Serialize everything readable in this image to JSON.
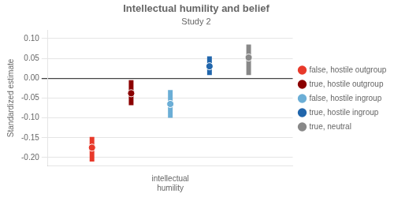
{
  "chart_data": {
    "type": "scatter",
    "title": "Intellectual humility and belief",
    "subtitle": "Study 2",
    "ylabel": "Standardized estimate",
    "categories": [
      "intellectual\nhumility"
    ],
    "series": [
      {
        "name": "false, hostile outgroup",
        "color": "#e8392a",
        "values": [
          -0.175
        ],
        "ylo": [
          -0.21
        ],
        "yhi": [
          -0.148
        ]
      },
      {
        "name": "true, hostile outgroup",
        "color": "#8b0000",
        "values": [
          -0.038
        ],
        "ylo": [
          -0.068
        ],
        "yhi": [
          -0.005
        ]
      },
      {
        "name": "false, hostile ingroup",
        "color": "#6baed6",
        "values": [
          -0.065
        ],
        "ylo": [
          -0.1
        ],
        "yhi": [
          -0.03
        ]
      },
      {
        "name": "true, hostile ingroup",
        "color": "#2166ac",
        "values": [
          0.03
        ],
        "ylo": [
          0.008
        ],
        "yhi": [
          0.055
        ]
      },
      {
        "name": "true, neutral",
        "color": "#888888",
        "values": [
          0.052
        ],
        "ylo": [
          0.008
        ],
        "yhi": [
          0.085
        ]
      }
    ],
    "ylim": [
      -0.22,
      0.12
    ],
    "yticks": [
      {
        "value": -0.2,
        "label": "-0.20"
      },
      {
        "value": -0.15,
        "label": "-0.15"
      },
      {
        "value": -0.1,
        "label": "-0.10"
      },
      {
        "value": -0.05,
        "label": "-0.05"
      },
      {
        "value": 0.0,
        "label": "0.00"
      },
      {
        "value": 0.05,
        "label": "0.05"
      },
      {
        "value": 0.1,
        "label": "0.10"
      }
    ],
    "grid": true,
    "legend": "right"
  }
}
